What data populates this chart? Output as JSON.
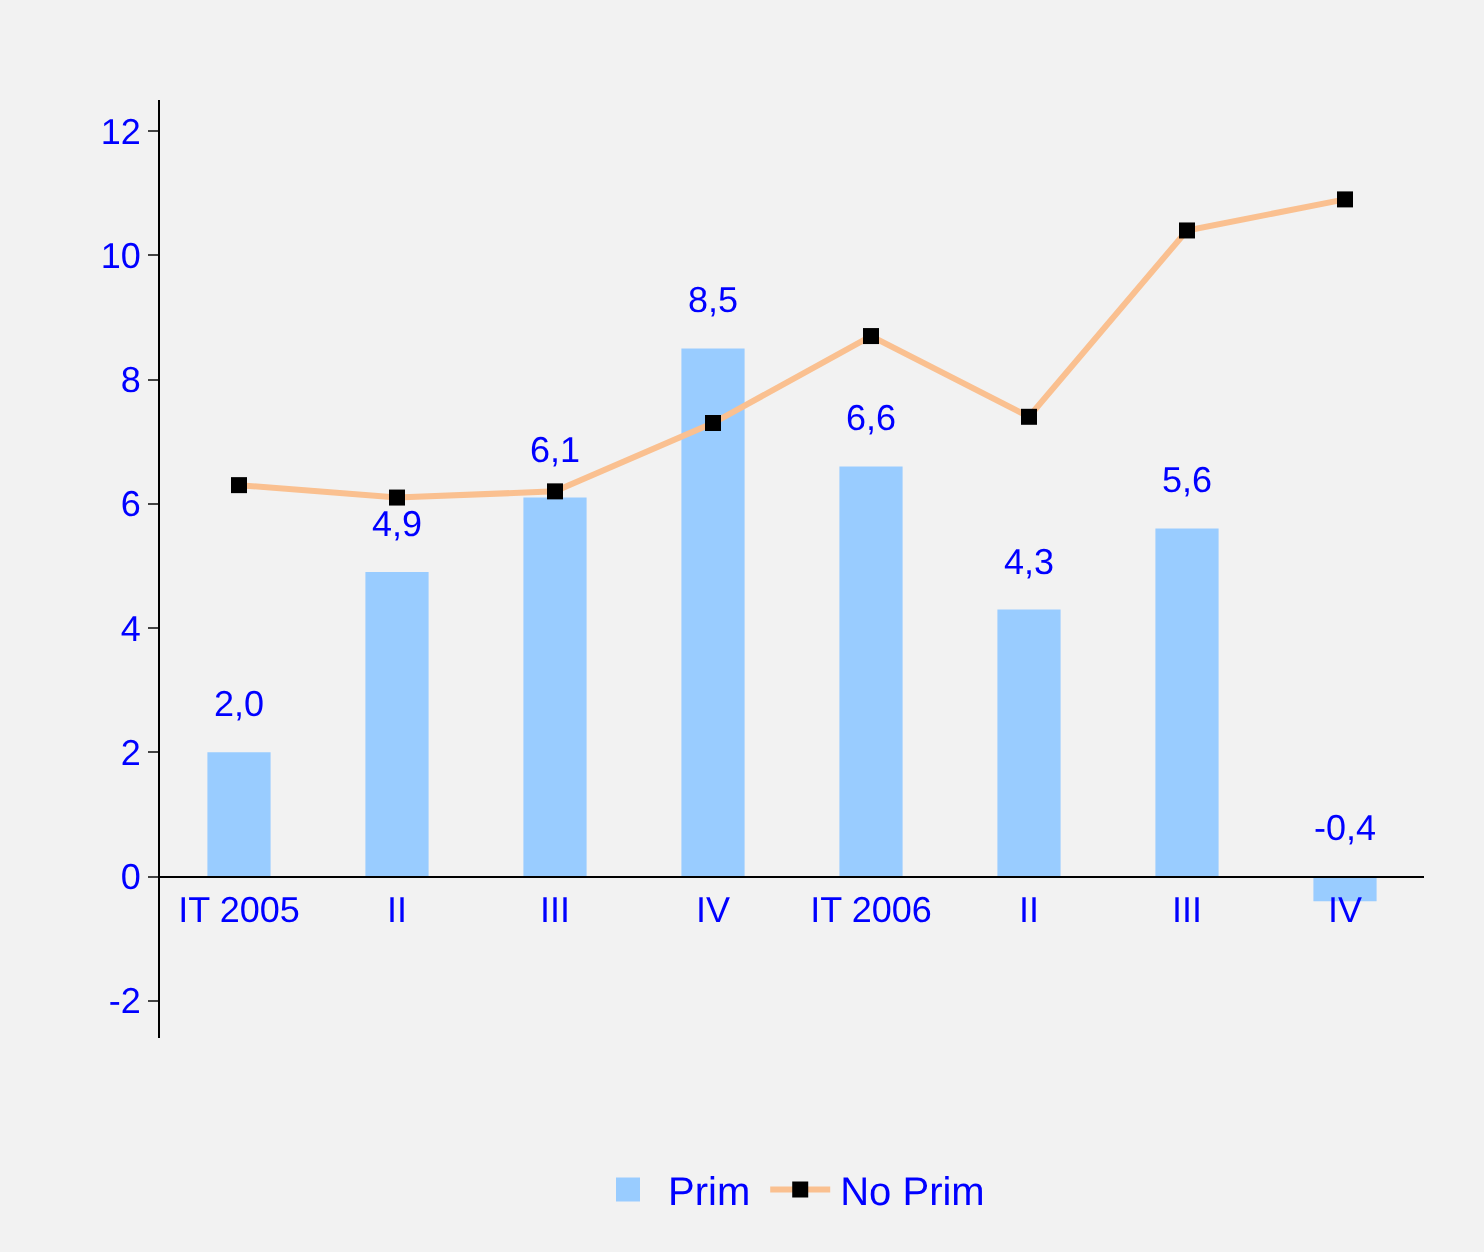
{
  "chart_data": {
    "type": "bar",
    "categories": [
      "IT 2005",
      "II",
      "III",
      "IV",
      "IT 2006",
      "II",
      "III",
      "IV"
    ],
    "series": [
      {
        "name": "Prim",
        "color": "#99ccff",
        "values": [
          2.0,
          4.9,
          6.1,
          8.5,
          6.6,
          4.3,
          5.6,
          -0.4
        ],
        "value_labels": [
          "2,0",
          "4,9",
          "6,1",
          "8,5",
          "6,6",
          "4,3",
          "5,6",
          "-0,4"
        ]
      },
      {
        "name": "No Prim",
        "type": "line",
        "color": "#fac090",
        "marker": "square",
        "values": [
          6.3,
          6.1,
          6.2,
          7.3,
          8.7,
          7.4,
          10.4,
          10.9
        ]
      }
    ],
    "ylim": [
      -2.6,
      12.5
    ],
    "yticks": [
      -2,
      0,
      2,
      4,
      6,
      8,
      10,
      12
    ],
    "grid": false,
    "legend": "bottom"
  }
}
